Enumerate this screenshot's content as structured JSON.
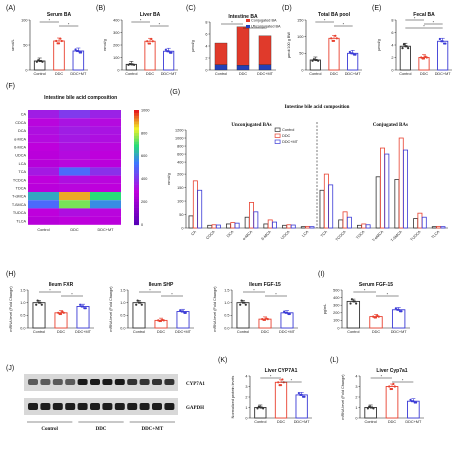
{
  "colors": {
    "control": "#333333",
    "ddc": "#e8412f",
    "ddcmt": "#3a3ad6",
    "star": "#111111"
  },
  "chart_data": [
    {
      "id": "A",
      "panel_label": "(A)",
      "type": "bar",
      "title": "Serum BA",
      "ylabel": "umol/L",
      "ylim": [
        0,
        100
      ],
      "yticks": [
        "0",
        "50",
        "100"
      ],
      "categories": [
        "Control",
        "DDC",
        "DDC+MT"
      ],
      "values": [
        18,
        58,
        38
      ],
      "sig": [
        [
          "0",
          "1"
        ],
        [
          "1",
          "2"
        ]
      ]
    },
    {
      "id": "B",
      "panel_label": "(B)",
      "type": "bar",
      "title": "Liver BA",
      "ylabel": "nmol/g",
      "ylim": [
        0,
        400
      ],
      "yticks": [
        "0",
        "100",
        "200",
        "300",
        "400"
      ],
      "categories": [
        "Control",
        "DDC",
        "DDC+MT"
      ],
      "values": [
        45,
        230,
        150
      ],
      "sig": [
        [
          "0",
          "1"
        ],
        [
          "1",
          "2"
        ]
      ]
    },
    {
      "id": "C",
      "panel_label": "(C)",
      "type": "bar",
      "title": "Intestine BA",
      "ylabel": "µmol/g",
      "ylim": [
        0,
        8
      ],
      "yticks": [
        "0",
        "2",
        "4",
        "6",
        "8"
      ],
      "categories": [
        "Control",
        "DDC",
        "DDC+MT"
      ],
      "series": [
        {
          "name": "Conjugated BA",
          "values": [
            3.6,
            6.4,
            4.8
          ]
        },
        {
          "name": "Unconjugated BA",
          "values": [
            0.9,
            0.8,
            0.9
          ]
        }
      ],
      "sig": [
        [
          "0",
          "1"
        ],
        [
          "1",
          "2"
        ]
      ]
    },
    {
      "id": "D",
      "panel_label": "(D)",
      "type": "bar",
      "title": "Total BA pool",
      "ylabel": "µmol/100 g BW",
      "ylim": [
        0,
        150
      ],
      "yticks": [
        "0",
        "50",
        "100",
        "150"
      ],
      "categories": [
        "Control",
        "DDC",
        "DDC+MT"
      ],
      "values": [
        30,
        95,
        50
      ],
      "sig": [
        [
          "0",
          "1"
        ],
        [
          "1",
          "2"
        ]
      ]
    },
    {
      "id": "E",
      "panel_label": "(E)",
      "type": "bar",
      "title": "Fecal BA",
      "ylabel": "µmol/g",
      "ylim": [
        0,
        8
      ],
      "yticks": [
        "0",
        "2",
        "4",
        "6",
        "8"
      ],
      "categories": [
        "Control",
        "DDC",
        "DDC+MT"
      ],
      "values": [
        3.8,
        2.0,
        4.6
      ],
      "sig": [
        [
          "0",
          "1"
        ],
        [
          "1",
          "2"
        ],
        [
          "0",
          "2"
        ]
      ]
    },
    {
      "id": "F",
      "panel_label": "(F)",
      "type": "heatmap",
      "title": "Intestine bile acid composition",
      "rows": [
        "CA",
        "CDCA",
        "DCA",
        "α-MCA",
        "ß-MCA",
        "UDCA",
        "LCA",
        "TCA",
        "TCDCA",
        "TDCA",
        "T-αMCA",
        "T-ßMCA",
        "TUDCA",
        "TLCA"
      ],
      "columns": [
        "Control",
        "DDC",
        "DDC+MT"
      ],
      "scale": [
        0,
        1000
      ],
      "scale_ticks": [
        "0",
        "200",
        "400",
        "600",
        "800",
        "1000"
      ],
      "values": [
        [
          360,
          420,
          370
        ],
        [
          310,
          340,
          320
        ],
        [
          330,
          360,
          340
        ],
        [
          320,
          350,
          330
        ],
        [
          300,
          330,
          310
        ],
        [
          290,
          320,
          300
        ],
        [
          280,
          310,
          290
        ],
        [
          350,
          520,
          400
        ],
        [
          300,
          330,
          310
        ],
        [
          290,
          310,
          300
        ],
        [
          620,
          900,
          700
        ],
        [
          520,
          760,
          580
        ],
        [
          300,
          330,
          310
        ],
        [
          280,
          300,
          290
        ]
      ]
    },
    {
      "id": "G",
      "panel_label": "(G)",
      "type": "bar",
      "title": "Intestine bile acid composition",
      "ylabel": "nmol/g",
      "subtitles": [
        "Unconjugated BAs",
        "Conjugated BAs"
      ],
      "yticks": [
        "0",
        "50",
        "100",
        "150",
        "200",
        "400",
        "600",
        "800",
        "1000",
        "1200"
      ],
      "categories": [
        "CA",
        "CDCA",
        "DCA",
        "α-MCA",
        "ß-MCA",
        "UDCA",
        "LCA",
        "TCA",
        "TCDCA",
        "TDCA",
        "T-αMCA",
        "T-ßMCA",
        "TUDCA",
        "TLCA"
      ],
      "series": [
        {
          "name": "Control",
          "values": [
            45,
            10,
            15,
            40,
            15,
            10,
            5,
            140,
            30,
            10,
            190,
            180,
            35,
            5
          ]
        },
        {
          "name": "DDC",
          "values": [
            175,
            12,
            20,
            95,
            30,
            12,
            6,
            200,
            60,
            15,
            750,
            1000,
            55,
            6
          ]
        },
        {
          "name": "DDC+MT",
          "values": [
            140,
            11,
            18,
            60,
            22,
            11,
            5,
            160,
            40,
            12,
            600,
            700,
            40,
            5
          ]
        }
      ]
    },
    {
      "id": "H1",
      "panel_label": "(H)",
      "type": "bar",
      "title": "Ileum FXR",
      "ylabel": "mRNA level (Fold Change)",
      "ylim": [
        0,
        1.5
      ],
      "yticks": [
        "0.0",
        "0.5",
        "1.0",
        "1.5"
      ],
      "categories": [
        "Control",
        "DDC",
        "DDC+MT"
      ],
      "values": [
        1.0,
        0.6,
        0.85
      ],
      "sig": [
        [
          "0",
          "1"
        ],
        [
          "1",
          "2"
        ]
      ]
    },
    {
      "id": "H2",
      "panel_label": "",
      "type": "bar",
      "title": "Ileum SHP",
      "ylabel": "mRNA level (Fold Change)",
      "ylim": [
        0,
        1.5
      ],
      "yticks": [
        "0.0",
        "0.5",
        "1.0",
        "1.5"
      ],
      "categories": [
        "Control",
        "DDC",
        "DDC+MT"
      ],
      "values": [
        1.0,
        0.3,
        0.65
      ],
      "sig": [
        [
          "0",
          "1"
        ],
        [
          "1",
          "2"
        ]
      ]
    },
    {
      "id": "H3",
      "panel_label": "",
      "type": "bar",
      "title": "Ileum FGF-15",
      "ylabel": "mRNA level (Fold Change)",
      "ylim": [
        0,
        1.5
      ],
      "yticks": [
        "0.0",
        "0.5",
        "1.0",
        "1.5"
      ],
      "categories": [
        "Control",
        "DDC",
        "DDC+MT"
      ],
      "values": [
        1.0,
        0.35,
        0.6
      ],
      "sig": [
        [
          "0",
          "1"
        ],
        [
          "1",
          "2"
        ]
      ]
    },
    {
      "id": "I",
      "panel_label": "(I)",
      "type": "bar",
      "title": "Serum FGF-15",
      "ylabel": "pg/mL",
      "ylim": [
        0,
        500
      ],
      "yticks": [
        "0",
        "100",
        "200",
        "300",
        "400",
        "500"
      ],
      "categories": [
        "Control",
        "DDC",
        "DDC+MT"
      ],
      "values": [
        350,
        150,
        240
      ],
      "sig": [
        [
          "0",
          "1"
        ],
        [
          "1",
          "2"
        ]
      ]
    },
    {
      "id": "K",
      "panel_label": "(K)",
      "type": "bar",
      "title": "Liver CYP7A1",
      "ylabel": "Normalized protein levels",
      "ylim": [
        0,
        4
      ],
      "yticks": [
        "0",
        "1",
        "2",
        "3",
        "4"
      ],
      "categories": [
        "Control",
        "DDC",
        "DDC+MT"
      ],
      "values": [
        1.0,
        3.4,
        2.2
      ],
      "sig": [
        [
          "0",
          "1"
        ],
        [
          "1",
          "2"
        ]
      ]
    },
    {
      "id": "L",
      "panel_label": "(L)",
      "type": "bar",
      "title": "Liver Cyp7a1",
      "ylabel": "mRNA level (Fold Change)",
      "ylim": [
        0,
        4
      ],
      "yticks": [
        "0",
        "1",
        "2",
        "3",
        "4"
      ],
      "categories": [
        "Control",
        "DDC",
        "DDC+MT"
      ],
      "values": [
        1.0,
        3.0,
        1.6
      ],
      "sig": [
        [
          "0",
          "1"
        ],
        [
          "1",
          "2"
        ]
      ]
    }
  ],
  "blot": {
    "panel_label": "(J)",
    "bands": [
      "CYP7A1",
      "GAPDH"
    ],
    "groups": [
      "Control",
      "DDC",
      "DDC+MT"
    ]
  },
  "star": "*"
}
